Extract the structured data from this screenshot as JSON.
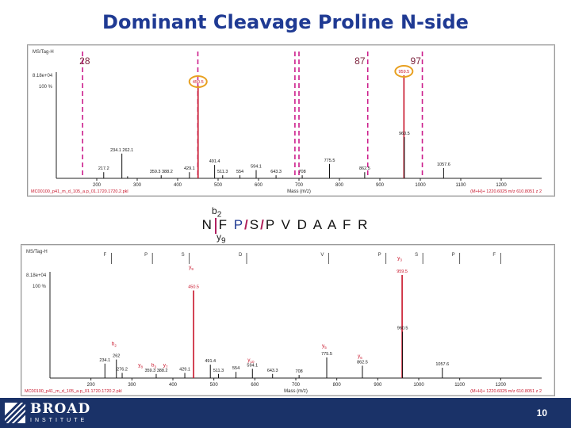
{
  "title": "Dominant Cleavage Proline N-side",
  "sequence": {
    "before": "N F ",
    "pro1": "P",
    "slash1": "/",
    "s": "S",
    "slash2": "/",
    "after": "P V D A A F R",
    "b_label": "b",
    "b_sub": "2",
    "y_label": "y",
    "y_sub": "9"
  },
  "page_number": "10",
  "logo": {
    "main": "BROAD",
    "sub": "INSTITUTE"
  },
  "colors": {
    "title": "#1f3a93",
    "footer": "#1a3268",
    "peak_red": "#c8142a",
    "marker": "#cc1e8c",
    "highlight": "#e8a020"
  },
  "chart_data": [
    {
      "type": "bar",
      "name": "top-spectrum",
      "header": "MS/Tag-H",
      "intensity_label": "8.18e+04",
      "intensity_pct": "100 %",
      "xlabel": "Mass (m/z)",
      "xlim": [
        100,
        1300
      ],
      "xticks": [
        200,
        300,
        400,
        500,
        600,
        700,
        800,
        900,
        1000,
        1100,
        1200
      ],
      "footer_left": "MC00100_p41_m_d_105_a.p_01.1720.1720.2.pkl",
      "footer_right": "(M+H)+ 1220.6025 m/z 610.8051 z 2",
      "top_labels": [
        {
          "text": "28",
          "mz": 165
        },
        {
          "text": "87",
          "mz": 865
        },
        {
          "text": "97",
          "mz": 1003
        }
      ],
      "marker_lines": [
        165,
        450,
        690,
        700,
        870,
        1005
      ],
      "peaks": [
        {
          "mz": 217.2,
          "rel": 0.06,
          "label": "217.2"
        },
        {
          "mz": 262.1,
          "rel": 0.24,
          "label": "234.1  262.1"
        },
        {
          "mz": 276.2,
          "rel": 0.02,
          "label": ""
        },
        {
          "mz": 359.3,
          "rel": 0.03,
          "label": "359.3  388.2"
        },
        {
          "mz": 429.1,
          "rel": 0.06,
          "label": "429.1"
        },
        {
          "mz": 450.5,
          "rel": 0.9,
          "label": "450.5"
        },
        {
          "mz": 491.4,
          "rel": 0.13,
          "label": "491.4"
        },
        {
          "mz": 511.3,
          "rel": 0.03,
          "label": "511.3"
        },
        {
          "mz": 554,
          "rel": 0.03,
          "label": "554"
        },
        {
          "mz": 594.1,
          "rel": 0.08,
          "label": "594.1"
        },
        {
          "mz": 643.3,
          "rel": 0.03,
          "label": "643.3"
        },
        {
          "mz": 708,
          "rel": 0.03,
          "label": "708"
        },
        {
          "mz": 775.5,
          "rel": 0.14,
          "label": "775.5"
        },
        {
          "mz": 862.5,
          "rel": 0.06,
          "label": "862.5"
        },
        {
          "mz": 959.5,
          "rel": 1.0,
          "label": "959.5"
        },
        {
          "mz": 960.5,
          "rel": 0.4,
          "label": "960.5"
        },
        {
          "mz": 1057.6,
          "rel": 0.1,
          "label": "1057.6"
        }
      ],
      "highlighted": [
        "450.5",
        "959.5"
      ]
    },
    {
      "type": "bar",
      "name": "bottom-spectrum",
      "header": "MS/Tag-H",
      "intensity_label": "8.18e+04",
      "intensity_pct": "100 %",
      "xlabel": "Mass (m/z)",
      "xlim": [
        100,
        1300
      ],
      "xticks": [
        200,
        300,
        400,
        500,
        600,
        700,
        800,
        900,
        1000,
        1100,
        1200
      ],
      "footer_left": "MC00100_p41_m_d_105_a.p_01.1720.1720.2.pkl",
      "footer_right": "(M+H)+ 1220.6025 m/z 610.8051 z 2",
      "residue_letters": [
        {
          "text": "F",
          "mz": 250
        },
        {
          "text": "P",
          "mz": 350
        },
        {
          "text": "S",
          "mz": 440
        },
        {
          "text": "D",
          "mz": 580
        },
        {
          "text": "V",
          "mz": 780
        },
        {
          "text": "P",
          "mz": 920
        },
        {
          "text": "S",
          "mz": 1010
        },
        {
          "text": "P",
          "mz": 1100
        },
        {
          "text": "F",
          "mz": 1200
        }
      ],
      "peaks": [
        {
          "mz": 234.1,
          "rel": 0.14,
          "label": "234.1"
        },
        {
          "mz": 262.1,
          "rel": 0.18,
          "label": "262"
        },
        {
          "mz": 276.2,
          "rel": 0.05,
          "label": "276.2"
        },
        {
          "mz": 359.3,
          "rel": 0.04,
          "label": "359.3  388.2"
        },
        {
          "mz": 429.1,
          "rel": 0.05,
          "label": "429.1"
        },
        {
          "mz": 450.5,
          "rel": 0.85,
          "label": "450.5",
          "ion": "y9",
          "red": true
        },
        {
          "mz": 491.4,
          "rel": 0.13,
          "label": "491.4"
        },
        {
          "mz": 511.3,
          "rel": 0.04,
          "label": "511.3"
        },
        {
          "mz": 554,
          "rel": 0.06,
          "label": "554"
        },
        {
          "mz": 594.1,
          "rel": 0.09,
          "label": "594.1"
        },
        {
          "mz": 643.3,
          "rel": 0.04,
          "label": "643.3"
        },
        {
          "mz": 708,
          "rel": 0.03,
          "label": "708"
        },
        {
          "mz": 775.5,
          "rel": 0.2,
          "label": "775.5"
        },
        {
          "mz": 862.5,
          "rel": 0.12,
          "label": "862.5"
        },
        {
          "mz": 959.5,
          "rel": 1.0,
          "label": "959.5",
          "red": true
        },
        {
          "mz": 960.5,
          "rel": 0.45,
          "label": "960.5"
        },
        {
          "mz": 1057.6,
          "rel": 0.1,
          "label": "1057.6"
        }
      ],
      "ion_labels": [
        {
          "text": "y",
          "sub": "9",
          "mz": 450.5,
          "rel": 1.06
        },
        {
          "text": "y",
          "sub": "3",
          "mz": 959.5,
          "rel": 1.15
        },
        {
          "text": "b",
          "sub": "2",
          "mz": 262,
          "rel": 0.32
        },
        {
          "text": "y",
          "sub": "8",
          "mz": 327,
          "rel": 0.11
        },
        {
          "text": "b",
          "sub": "3",
          "mz": 359,
          "rel": 0.11
        },
        {
          "text": "y",
          "sub": "7",
          "mz": 388,
          "rel": 0.11
        },
        {
          "text": "y",
          "sub": "10",
          "mz": 594,
          "rel": 0.16
        },
        {
          "text": "y",
          "sub": "5",
          "mz": 775.5,
          "rel": 0.3
        },
        {
          "text": "y",
          "sub": "6",
          "mz": 862.5,
          "rel": 0.2
        }
      ]
    }
  ]
}
